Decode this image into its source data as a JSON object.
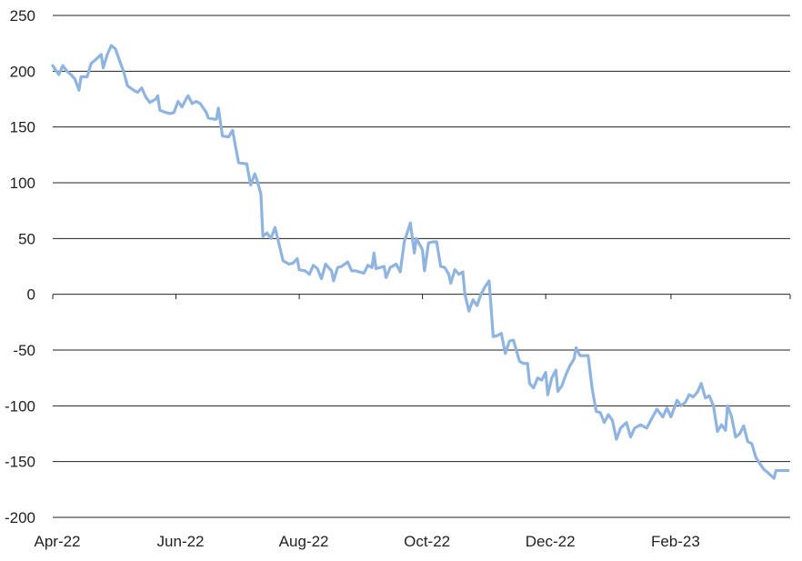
{
  "chart_data": {
    "type": "line",
    "title": "",
    "xlabel": "",
    "ylabel": "",
    "ylim": [
      -200,
      250
    ],
    "yticks": [
      250,
      200,
      150,
      100,
      50,
      0,
      -50,
      -100,
      -150,
      -200
    ],
    "xticks": [
      {
        "label": "Apr-22",
        "date": "2022-04-01"
      },
      {
        "label": "Jun-22",
        "date": "2022-06-01"
      },
      {
        "label": "Aug-22",
        "date": "2022-08-01"
      },
      {
        "label": "Oct-22",
        "date": "2022-10-01"
      },
      {
        "label": "Dec-22",
        "date": "2022-12-01"
      },
      {
        "label": "Feb-23",
        "date": "2023-02-01"
      }
    ],
    "xlim": [
      "2022-04-01",
      "2023-04-01"
    ],
    "grid": true,
    "legend": "none",
    "color": "#8fb4e0",
    "series": [
      {
        "points": [
          [
            "2022-04-01",
            205
          ],
          [
            "2022-04-04",
            197
          ],
          [
            "2022-04-06",
            205
          ],
          [
            "2022-04-08",
            200
          ],
          [
            "2022-04-10",
            197
          ],
          [
            "2022-04-12",
            193
          ],
          [
            "2022-04-14",
            183
          ],
          [
            "2022-04-15",
            195
          ],
          [
            "2022-04-18",
            195
          ],
          [
            "2022-04-20",
            207
          ],
          [
            "2022-04-22",
            210
          ],
          [
            "2022-04-25",
            215
          ],
          [
            "2022-04-26",
            203
          ],
          [
            "2022-04-28",
            215
          ],
          [
            "2022-04-30",
            223
          ],
          [
            "2022-05-02",
            220
          ],
          [
            "2022-05-04",
            210
          ],
          [
            "2022-05-06",
            200
          ],
          [
            "2022-05-08",
            187
          ],
          [
            "2022-05-11",
            183
          ],
          [
            "2022-05-13",
            181
          ],
          [
            "2022-05-15",
            185
          ],
          [
            "2022-05-17",
            177
          ],
          [
            "2022-05-19",
            172
          ],
          [
            "2022-05-22",
            175
          ],
          [
            "2022-05-23",
            178
          ],
          [
            "2022-05-24",
            165
          ],
          [
            "2022-05-27",
            163
          ],
          [
            "2022-05-29",
            162
          ],
          [
            "2022-05-31",
            163
          ],
          [
            "2022-06-02",
            173
          ],
          [
            "2022-06-04",
            168
          ],
          [
            "2022-06-06",
            175
          ],
          [
            "2022-06-07",
            178
          ],
          [
            "2022-06-09",
            171
          ],
          [
            "2022-06-11",
            173
          ],
          [
            "2022-06-13",
            171
          ],
          [
            "2022-06-16",
            163
          ],
          [
            "2022-06-17",
            158
          ],
          [
            "2022-06-20",
            157
          ],
          [
            "2022-06-21",
            157
          ],
          [
            "2022-06-22",
            167
          ],
          [
            "2022-06-24",
            142
          ],
          [
            "2022-06-27",
            141
          ],
          [
            "2022-06-29",
            147
          ],
          [
            "2022-06-30",
            137
          ],
          [
            "2022-07-02",
            118
          ],
          [
            "2022-07-05",
            117
          ],
          [
            "2022-07-06",
            117
          ],
          [
            "2022-07-08",
            98
          ],
          [
            "2022-07-10",
            108
          ],
          [
            "2022-07-11",
            103
          ],
          [
            "2022-07-13",
            90
          ],
          [
            "2022-07-14",
            52
          ],
          [
            "2022-07-16",
            55
          ],
          [
            "2022-07-18",
            50
          ],
          [
            "2022-07-20",
            60
          ],
          [
            "2022-07-22",
            45
          ],
          [
            "2022-07-24",
            30
          ],
          [
            "2022-07-27",
            27
          ],
          [
            "2022-07-29",
            28
          ],
          [
            "2022-07-31",
            32
          ],
          [
            "2022-08-01",
            22
          ],
          [
            "2022-08-04",
            21
          ],
          [
            "2022-08-06",
            18
          ],
          [
            "2022-08-08",
            26
          ],
          [
            "2022-08-10",
            23
          ],
          [
            "2022-08-12",
            14
          ],
          [
            "2022-08-14",
            27
          ],
          [
            "2022-08-17",
            21
          ],
          [
            "2022-08-18",
            12
          ],
          [
            "2022-08-20",
            24
          ],
          [
            "2022-08-22",
            25
          ],
          [
            "2022-08-25",
            29
          ],
          [
            "2022-08-27",
            21
          ],
          [
            "2022-08-29",
            21
          ],
          [
            "2022-09-02",
            19
          ],
          [
            "2022-09-04",
            26
          ],
          [
            "2022-09-06",
            24
          ],
          [
            "2022-09-07",
            37
          ],
          [
            "2022-09-08",
            23
          ],
          [
            "2022-09-10",
            24
          ],
          [
            "2022-09-12",
            25
          ],
          [
            "2022-09-13",
            15
          ],
          [
            "2022-09-15",
            24
          ],
          [
            "2022-09-18",
            27
          ],
          [
            "2022-09-20",
            20
          ],
          [
            "2022-09-22",
            47
          ],
          [
            "2022-09-25",
            64
          ],
          [
            "2022-09-27",
            37
          ],
          [
            "2022-09-28",
            50
          ],
          [
            "2022-10-01",
            40
          ],
          [
            "2022-10-02",
            21
          ],
          [
            "2022-10-04",
            46
          ],
          [
            "2022-10-06",
            47
          ],
          [
            "2022-10-08",
            47
          ],
          [
            "2022-10-10",
            25
          ],
          [
            "2022-10-12",
            24
          ],
          [
            "2022-10-14",
            18
          ],
          [
            "2022-10-15",
            10
          ],
          [
            "2022-10-17",
            22
          ],
          [
            "2022-10-19",
            18
          ],
          [
            "2022-10-21",
            20
          ],
          [
            "2022-10-22",
            0
          ],
          [
            "2022-10-24",
            -15
          ],
          [
            "2022-10-26",
            -5
          ],
          [
            "2022-10-28",
            -10
          ],
          [
            "2022-10-30",
            0
          ],
          [
            "2022-11-01",
            7
          ],
          [
            "2022-11-03",
            12
          ],
          [
            "2022-11-05",
            -38
          ],
          [
            "2022-11-07",
            -37
          ],
          [
            "2022-11-09",
            -35
          ],
          [
            "2022-11-11",
            -53
          ],
          [
            "2022-11-13",
            -42
          ],
          [
            "2022-11-15",
            -41
          ],
          [
            "2022-11-18",
            -60
          ],
          [
            "2022-11-20",
            -62
          ],
          [
            "2022-11-22",
            -62
          ],
          [
            "2022-11-23",
            -80
          ],
          [
            "2022-11-25",
            -84
          ],
          [
            "2022-11-27",
            -75
          ],
          [
            "2022-11-29",
            -77
          ],
          [
            "2022-12-01",
            -70
          ],
          [
            "2022-12-02",
            -90
          ],
          [
            "2022-12-04",
            -75
          ],
          [
            "2022-12-06",
            -68
          ],
          [
            "2022-12-07",
            -87
          ],
          [
            "2022-12-09",
            -82
          ],
          [
            "2022-12-11",
            -72
          ],
          [
            "2022-12-13",
            -64
          ],
          [
            "2022-12-15",
            -58
          ],
          [
            "2022-12-16",
            -48
          ],
          [
            "2022-12-18",
            -55
          ],
          [
            "2022-12-20",
            -55
          ],
          [
            "2022-12-22",
            -55
          ],
          [
            "2022-12-24",
            -85
          ],
          [
            "2022-12-26",
            -105
          ],
          [
            "2022-12-28",
            -106
          ],
          [
            "2022-12-30",
            -115
          ],
          [
            "2023-01-01",
            -108
          ],
          [
            "2023-01-03",
            -113
          ],
          [
            "2023-01-05",
            -130
          ],
          [
            "2023-01-07",
            -120
          ],
          [
            "2023-01-10",
            -115
          ],
          [
            "2023-01-12",
            -128
          ],
          [
            "2023-01-14",
            -120
          ],
          [
            "2023-01-17",
            -117
          ],
          [
            "2023-01-20",
            -120
          ],
          [
            "2023-01-22",
            -113
          ],
          [
            "2023-01-25",
            -103
          ],
          [
            "2023-01-28",
            -110
          ],
          [
            "2023-01-30",
            -102
          ],
          [
            "2023-02-01",
            -110
          ],
          [
            "2023-02-04",
            -95
          ],
          [
            "2023-02-06",
            -100
          ],
          [
            "2023-02-08",
            -97
          ],
          [
            "2023-02-10",
            -90
          ],
          [
            "2023-02-12",
            -92
          ],
          [
            "2023-02-14",
            -88
          ],
          [
            "2023-02-16",
            -80
          ],
          [
            "2023-02-18",
            -93
          ],
          [
            "2023-02-20",
            -91
          ],
          [
            "2023-02-22",
            -100
          ],
          [
            "2023-02-24",
            -123
          ],
          [
            "2023-02-26",
            -117
          ],
          [
            "2023-02-28",
            -122
          ],
          [
            "2023-03-01",
            -100
          ],
          [
            "2023-03-03",
            -110
          ],
          [
            "2023-03-05",
            -128
          ],
          [
            "2023-03-07",
            -125
          ],
          [
            "2023-03-09",
            -118
          ],
          [
            "2023-03-11",
            -132
          ],
          [
            "2023-03-13",
            -134
          ],
          [
            "2023-03-15",
            -146
          ],
          [
            "2023-03-17",
            -152
          ],
          [
            "2023-03-19",
            -157
          ],
          [
            "2023-03-21",
            -160
          ],
          [
            "2023-03-24",
            -165
          ],
          [
            "2023-03-25",
            -158
          ],
          [
            "2023-03-28",
            -158
          ],
          [
            "2023-03-31",
            -158
          ]
        ]
      }
    ]
  }
}
